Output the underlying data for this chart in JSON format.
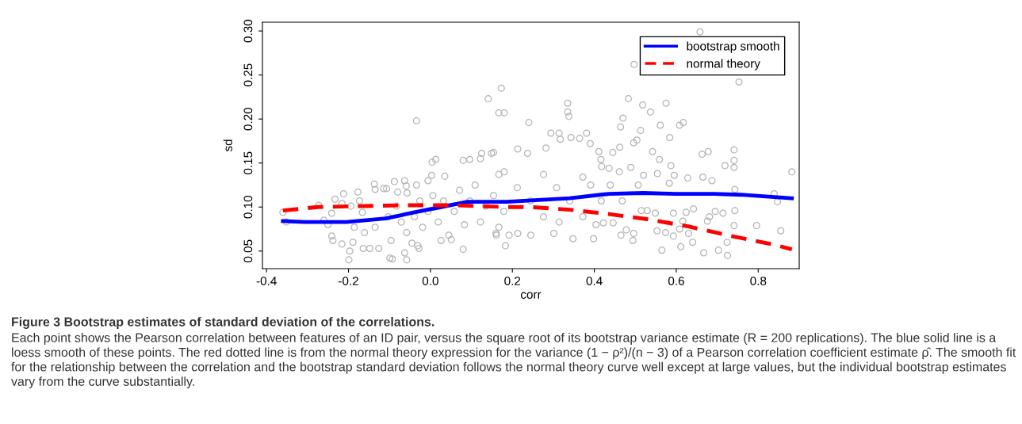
{
  "chart_data": {
    "type": "scatter",
    "title": "Figure 3 Bootstrap estimates of standard deviation of the correlations.",
    "xlabel": "corr",
    "ylabel": "sd",
    "xlim": [
      -0.41,
      0.9
    ],
    "ylim": [
      0.03,
      0.31
    ],
    "xticks": [
      -0.4,
      -0.2,
      {
        "value": 0,
        "label": "0.0"
      },
      0.2,
      0.4,
      0.6,
      0.8
    ],
    "yticks": [
      0.05,
      {
        "value": 0.1,
        "label": "0.10"
      },
      0.15,
      {
        "value": 0.2,
        "label": "0.20"
      },
      0.25,
      {
        "value": 0.3,
        "label": "0.30"
      }
    ],
    "grid": false,
    "legend": "top right",
    "annotations": [
      "Each point shows the Pearson correlation between features of an ID pair, versus the square root of its bootstrap variance estimate (R = 200 replications). The blue solid line is a loess smooth of these points. The red dotted line is from the normal theory expression for the variance (1 − ρ²)/(n − 3) of a Pearson correlation coefficient estimate ρ̂. The smooth fit for the relationship between the correlation and the bootstrap standard deviation follows the normal theory curve well except at large values, but the individual bootstrap estimates vary from the curve substantially."
    ],
    "series": [
      {
        "color": "#b4b4b4",
        "marker": "circle",
        "x": [
          -0.36,
          -0.352,
          -0.273,
          -0.26,
          -0.25,
          -0.241,
          -0.233,
          -0.241,
          -0.238,
          -0.216,
          -0.212,
          -0.216,
          -0.199,
          -0.197,
          -0.194,
          -0.189,
          -0.177,
          -0.173,
          -0.166,
          -0.164,
          -0.148,
          -0.137,
          -0.135,
          -0.126,
          -0.114,
          -0.107,
          -0.099,
          -0.093,
          -0.088,
          -0.08,
          -0.063,
          -0.059,
          -0.063,
          -0.058,
          -0.057,
          -0.034,
          -0.034,
          -0.031,
          -0.028,
          -0.006,
          0.004,
          0.013,
          0.003,
          0.035,
          0.08,
          0.08,
          0.096,
          0.141,
          0.173,
          0.167,
          0.18,
          0.149,
          0.154,
          0.122,
          0.125,
          -0.135,
          -0.103,
          -0.083,
          -0.071,
          -0.058,
          -0.039,
          -0.026,
          -0.019,
          -0.006,
          0.006,
          0.019,
          0.032,
          0.045,
          0.058,
          0.071,
          0.083,
          0.096,
          0.109,
          0.122,
          0.135,
          0.154,
          0.167,
          0.161,
          0.18,
          -0.045,
          0.026,
          0.051,
          -0.096,
          -0.161,
          -0.186,
          0.658,
          0.497,
          0.753,
          0.335,
          0.335,
          0.338,
          0.483,
          0.518,
          0.537,
          0.575,
          0.561,
          0.608,
          0.617,
          0.24,
          0.47,
          0.464,
          0.513,
          0.584,
          0.504,
          0.496,
          0.462,
          0.445,
          0.411,
          0.39,
          0.381,
          0.364,
          0.343,
          0.317,
          0.314,
          0.294,
          0.282,
          0.237,
          0.213,
          0.542,
          0.559,
          0.587,
          0.663,
          0.678,
          0.741,
          0.741,
          0.741,
          0.719,
          0.882,
          0.416,
          0.418,
          0.436,
          0.461,
          0.489,
          0.52,
          0.554,
          0.595,
          0.583,
          0.628,
          0.665,
          0.687,
          0.743,
          0.839,
          0.847,
          0.855,
          0.796,
          0.743,
          0.741,
          0.714,
          0.695,
          0.681,
          0.676,
          0.642,
          0.624,
          0.616,
          0.608,
          0.593,
          0.574,
          0.593,
          0.63,
          0.64,
          0.611,
          0.565,
          0.667,
          0.703,
          0.725,
          0.724,
          0.553,
          0.549,
          0.529,
          0.515,
          0.494,
          0.496,
          0.478,
          0.465,
          0.446,
          0.422,
          0.398,
          0.348,
          0.301,
          0.245,
          0.213,
          0.183,
          0.16,
          0.192,
          0.212,
          0.244,
          0.276,
          0.308,
          0.34,
          0.372,
          0.391,
          0.417,
          0.404,
          0.439,
          0.468,
          0.507,
          0.314,
          0.179,
          0.167,
          0.276,
          0.372
        ],
        "values": [
          0.094,
          0.083,
          0.102,
          0.085,
          0.08,
          0.093,
          0.109,
          0.067,
          0.062,
          0.104,
          0.115,
          0.058,
          0.04,
          0.05,
          0.101,
          0.06,
          0.117,
          0.107,
          0.094,
          0.053,
          0.053,
          0.126,
          0.12,
          0.053,
          0.121,
          0.121,
          0.042,
          0.041,
          0.129,
          0.117,
          0.13,
          0.124,
          0.048,
          0.04,
          0.116,
          0.125,
          0.198,
          0.056,
          0.053,
          0.13,
          0.151,
          0.154,
          0.136,
          0.135,
          0.153,
          0.052,
          0.154,
          0.223,
          0.235,
          0.207,
          0.207,
          0.161,
          0.162,
          0.155,
          0.161,
          0.077,
          0.089,
          0.101,
          0.083,
          0.071,
          0.089,
          0.107,
          0.077,
          0.095,
          0.113,
          0.083,
          0.107,
          0.068,
          0.095,
          0.119,
          0.08,
          0.107,
          0.125,
          0.083,
          0.101,
          0.113,
          0.077,
          0.068,
          0.14,
          0.059,
          0.062,
          0.063,
          0.062,
          0.071,
          0.077,
          0.299,
          0.262,
          0.242,
          0.218,
          0.208,
          0.203,
          0.223,
          0.216,
          0.208,
          0.218,
          0.193,
          0.193,
          0.196,
          0.196,
          0.201,
          0.191,
          0.187,
          0.179,
          0.176,
          0.173,
          0.168,
          0.162,
          0.163,
          0.172,
          0.184,
          0.178,
          0.179,
          0.177,
          0.184,
          0.184,
          0.167,
          0.161,
          0.166,
          0.163,
          0.154,
          0.147,
          0.16,
          0.163,
          0.165,
          0.153,
          0.145,
          0.147,
          0.14,
          0.154,
          0.146,
          0.144,
          0.14,
          0.145,
          0.136,
          0.138,
          0.136,
          0.127,
          0.133,
          0.134,
          0.13,
          0.12,
          0.115,
          0.106,
          0.073,
          0.079,
          0.096,
          0.079,
          0.093,
          0.095,
          0.089,
          0.084,
          0.098,
          0.094,
          0.084,
          0.075,
          0.093,
          0.071,
          0.067,
          0.07,
          0.06,
          0.055,
          0.051,
          0.048,
          0.051,
          0.045,
          0.06,
          0.073,
          0.093,
          0.096,
          0.096,
          0.062,
          0.07,
          0.074,
          0.068,
          0.082,
          0.082,
          0.064,
          0.064,
          0.07,
          0.068,
          0.07,
          0.056,
          0.07,
          0.068,
          0.122,
          0.107,
          0.089,
          0.122,
          0.107,
          0.089,
          0.125,
          0.107,
          0.08,
          0.125,
          0.107,
          0.125,
          0.083,
          0.095,
          0.137,
          0.137,
          0.134
        ]
      },
      {
        "type": "line",
        "name": "bootstrap smooth",
        "color": "#0000ff",
        "line_style": "solid",
        "x": [
          -0.36,
          -0.308,
          -0.205,
          -0.109,
          -0.039,
          0.026,
          0.09,
          0.186,
          0.34,
          0.436,
          0.52,
          0.597,
          0.693,
          0.757,
          0.882
        ],
        "values": [
          0.084,
          0.083,
          0.083,
          0.087,
          0.094,
          0.1,
          0.106,
          0.106,
          0.11,
          0.115,
          0.116,
          0.115,
          0.115,
          0.114,
          0.11
        ]
      },
      {
        "type": "line",
        "name": "normal theory",
        "color": "#ff0000",
        "line_style": "dashed",
        "x": [
          -0.36,
          -0.276,
          -0.173,
          -0.071,
          0.058,
          0.186,
          0.244,
          0.34,
          0.436,
          0.532,
          0.629,
          0.725,
          0.841,
          0.882
        ],
        "values": [
          0.096,
          0.1,
          0.101,
          0.102,
          0.102,
          0.1,
          0.1,
          0.097,
          0.092,
          0.086,
          0.078,
          0.068,
          0.057,
          0.052
        ]
      }
    ]
  }
}
